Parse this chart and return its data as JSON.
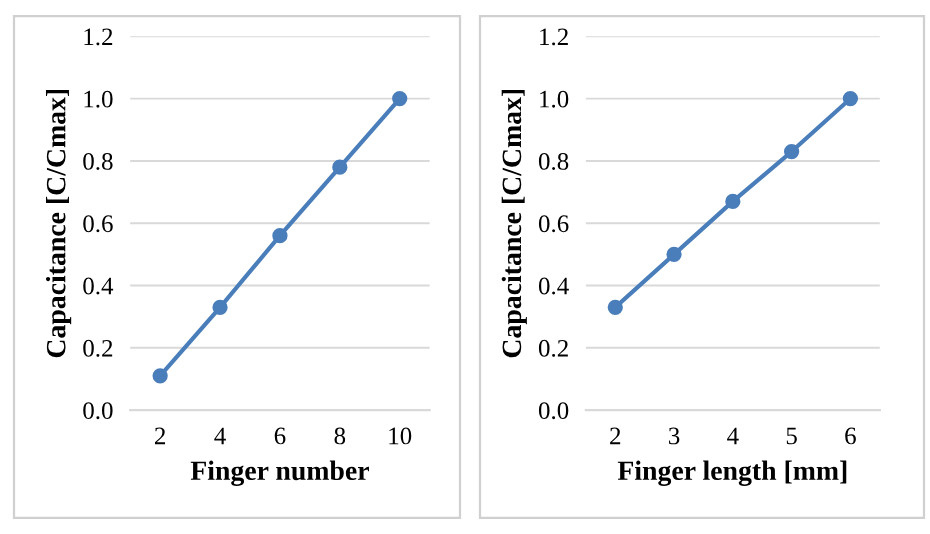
{
  "chart_data": [
    {
      "type": "line",
      "xlabel": "Finger number",
      "ylabel": "Capacitance [C/Cmax]",
      "categories": [
        "2",
        "4",
        "6",
        "8",
        "10"
      ],
      "series": [
        {
          "color": "#4a7ebb",
          "values": [
            0.11,
            0.33,
            0.56,
            0.78,
            1.0
          ]
        }
      ],
      "ylim": [
        0,
        1.2
      ],
      "yticks": [
        {
          "value": 0,
          "label": "0.0"
        },
        {
          "value": 0.2,
          "label": "0.2"
        },
        {
          "value": 0.4,
          "label": "0.4"
        },
        {
          "value": 0.6,
          "label": "0.6"
        },
        {
          "value": 0.8,
          "label": "0.8"
        },
        {
          "value": 1.0,
          "label": "1.0"
        },
        {
          "value": 1.2,
          "label": "1.2"
        }
      ],
      "grid": "y",
      "marker": "circle",
      "line_style": "solid"
    },
    {
      "type": "line",
      "xlabel": "Finger length [mm]",
      "ylabel": "Capacitance [C/Cmax]",
      "categories": [
        "2",
        "3",
        "4",
        "5",
        "6"
      ],
      "series": [
        {
          "color": "#4a7ebb",
          "values": [
            0.33,
            0.5,
            0.67,
            0.83,
            1.0
          ]
        }
      ],
      "ylim": [
        0,
        1.2
      ],
      "yticks": [
        {
          "value": 0,
          "label": "0.0"
        },
        {
          "value": 0.2,
          "label": "0.2"
        },
        {
          "value": 0.4,
          "label": "0.4"
        },
        {
          "value": 0.6,
          "label": "0.6"
        },
        {
          "value": 0.8,
          "label": "0.8"
        },
        {
          "value": 1.0,
          "label": "1.0"
        },
        {
          "value": 1.2,
          "label": "1.2"
        }
      ],
      "grid": "y",
      "marker": "circle",
      "line_style": "solid"
    }
  ]
}
